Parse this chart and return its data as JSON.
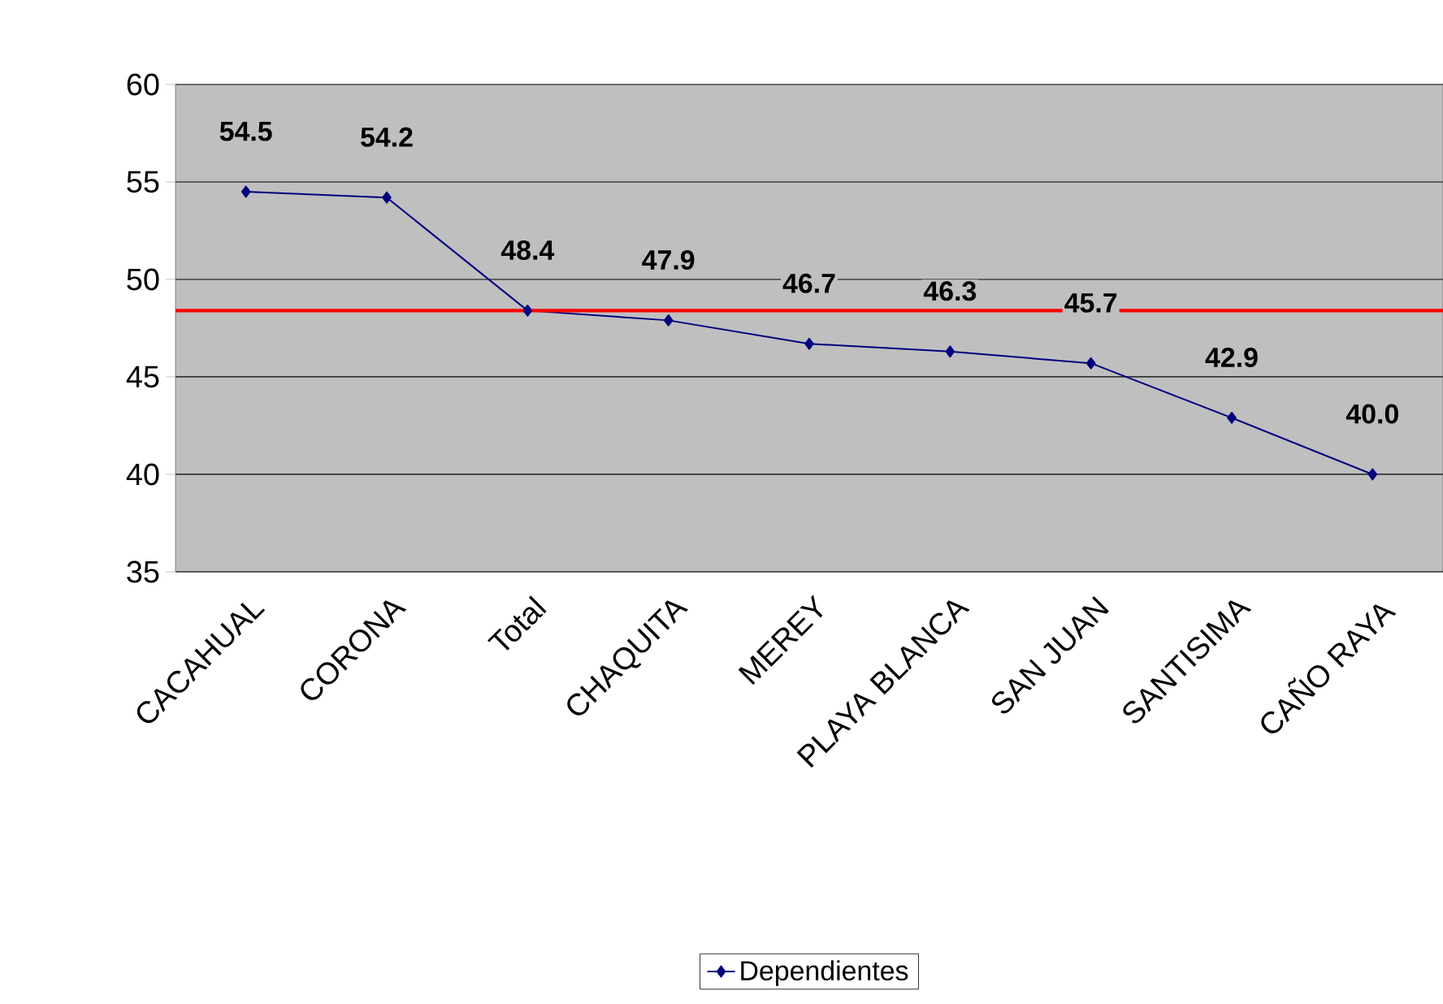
{
  "chart_data": {
    "type": "line",
    "categories": [
      "CACAHUAL",
      "CORONA",
      "Total",
      "CHAQUITA",
      "MEREY",
      "PLAYA BLANCA",
      "SAN JUAN",
      "SANTISIMA",
      "CAÑO RAYA"
    ],
    "series": [
      {
        "name": "Dependientes",
        "color": "#000080",
        "values": [
          54.5,
          54.2,
          48.4,
          47.9,
          46.7,
          46.3,
          45.7,
          42.9,
          40.0
        ]
      }
    ],
    "value_labels": [
      "54.5",
      "54.2",
      "48.4",
      "47.9",
      "46.7",
      "46.3",
      "45.7",
      "42.9",
      "40.0"
    ],
    "ylim": [
      35,
      60
    ],
    "yticks": [
      35,
      40,
      45,
      50,
      55,
      60
    ],
    "ref_lines": [
      {
        "axis": "y",
        "value": 48.4,
        "color": "#ff0000"
      }
    ],
    "grid": "y",
    "legend": "bottom",
    "marker": "diamond",
    "line_style": "solid"
  }
}
